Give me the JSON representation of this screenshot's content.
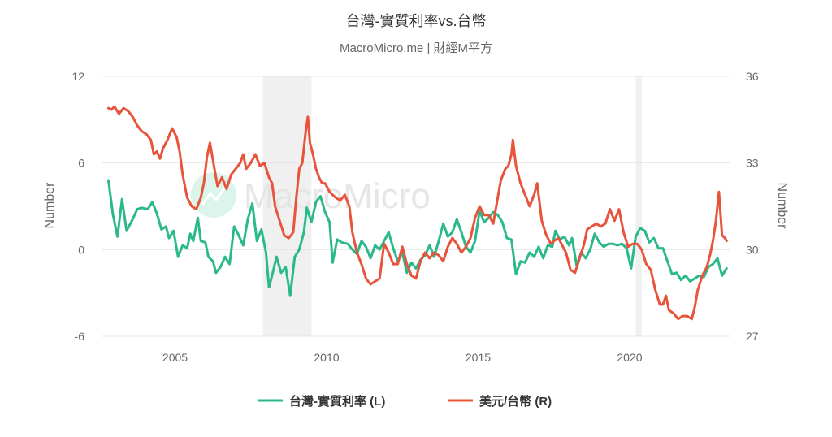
{
  "chart_data": {
    "type": "line",
    "title": "台灣-實質利率vs.台幣",
    "subtitle": "MacroMicro.me | 財經M平方",
    "watermark": "MacroMicro",
    "left_axis": {
      "label": "Number",
      "min": -6,
      "max": 12,
      "ticks": [
        -6,
        0,
        6,
        12
      ]
    },
    "right_axis": {
      "label": "Number",
      "min": 27,
      "max": 36,
      "ticks": [
        27,
        30,
        33,
        36
      ]
    },
    "x_axis": {
      "min": 2002.6,
      "max": 2023.3,
      "ticks": [
        2005,
        2010,
        2015,
        2020
      ]
    },
    "recession_bands": [
      [
        2007.9,
        2009.5
      ],
      [
        2020.2,
        2020.4
      ]
    ],
    "band_color": "#f0f0f0",
    "series": [
      {
        "name": "台灣-實質利率 (L)",
        "axis": "left",
        "color": "#2bb98b",
        "points": [
          [
            2002.8,
            4.8
          ],
          [
            2002.95,
            2.4
          ],
          [
            2003.1,
            0.9
          ],
          [
            2003.25,
            3.5
          ],
          [
            2003.4,
            1.3
          ],
          [
            2003.6,
            2.1
          ],
          [
            2003.75,
            2.8
          ],
          [
            2003.9,
            2.9
          ],
          [
            2004.1,
            2.8
          ],
          [
            2004.25,
            3.3
          ],
          [
            2004.4,
            2.5
          ],
          [
            2004.55,
            1.4
          ],
          [
            2004.7,
            1.6
          ],
          [
            2004.8,
            0.8
          ],
          [
            2004.95,
            1.3
          ],
          [
            2005.1,
            -0.5
          ],
          [
            2005.25,
            0.3
          ],
          [
            2005.4,
            0.1
          ],
          [
            2005.5,
            1.1
          ],
          [
            2005.6,
            0.6
          ],
          [
            2005.75,
            2.2
          ],
          [
            2005.85,
            0.6
          ],
          [
            2006.0,
            0.5
          ],
          [
            2006.1,
            -0.5
          ],
          [
            2006.25,
            -0.8
          ],
          [
            2006.35,
            -1.6
          ],
          [
            2006.5,
            -1.2
          ],
          [
            2006.65,
            -0.5
          ],
          [
            2006.8,
            -1.0
          ],
          [
            2006.95,
            1.6
          ],
          [
            2007.1,
            1.0
          ],
          [
            2007.25,
            0.3
          ],
          [
            2007.4,
            2.1
          ],
          [
            2007.55,
            3.2
          ],
          [
            2007.7,
            0.6
          ],
          [
            2007.85,
            1.4
          ],
          [
            2008.0,
            -0.2
          ],
          [
            2008.1,
            -2.6
          ],
          [
            2008.2,
            -1.8
          ],
          [
            2008.35,
            -0.5
          ],
          [
            2008.5,
            -1.6
          ],
          [
            2008.65,
            -1.2
          ],
          [
            2008.8,
            -3.2
          ],
          [
            2008.95,
            -0.5
          ],
          [
            2009.1,
            0.0
          ],
          [
            2009.25,
            1.2
          ],
          [
            2009.35,
            2.9
          ],
          [
            2009.5,
            1.9
          ],
          [
            2009.65,
            3.3
          ],
          [
            2009.8,
            3.7
          ],
          [
            2009.95,
            2.6
          ],
          [
            2010.1,
            1.9
          ],
          [
            2010.2,
            -0.9
          ],
          [
            2010.35,
            0.7
          ],
          [
            2010.5,
            0.5
          ],
          [
            2010.7,
            0.4
          ],
          [
            2010.85,
            0.0
          ],
          [
            2011.0,
            -0.3
          ],
          [
            2011.15,
            0.6
          ],
          [
            2011.3,
            0.2
          ],
          [
            2011.45,
            -0.6
          ],
          [
            2011.6,
            0.3
          ],
          [
            2011.75,
            0.0
          ],
          [
            2011.9,
            0.6
          ],
          [
            2012.05,
            1.2
          ],
          [
            2012.2,
            0.1
          ],
          [
            2012.35,
            -0.8
          ],
          [
            2012.5,
            -0.2
          ],
          [
            2012.65,
            -1.6
          ],
          [
            2012.8,
            -0.9
          ],
          [
            2012.95,
            -1.3
          ],
          [
            2013.1,
            -0.7
          ],
          [
            2013.25,
            -0.4
          ],
          [
            2013.4,
            0.3
          ],
          [
            2013.55,
            -0.5
          ],
          [
            2013.7,
            0.6
          ],
          [
            2013.85,
            1.8
          ],
          [
            2014.0,
            0.9
          ],
          [
            2014.15,
            1.2
          ],
          [
            2014.3,
            2.1
          ],
          [
            2014.45,
            1.2
          ],
          [
            2014.6,
            0.2
          ],
          [
            2014.75,
            -0.2
          ],
          [
            2014.9,
            0.6
          ],
          [
            2015.05,
            2.7
          ],
          [
            2015.2,
            1.9
          ],
          [
            2015.35,
            2.2
          ],
          [
            2015.5,
            2.6
          ],
          [
            2015.65,
            2.4
          ],
          [
            2015.8,
            1.9
          ],
          [
            2015.95,
            0.8
          ],
          [
            2016.1,
            0.7
          ],
          [
            2016.25,
            -1.7
          ],
          [
            2016.4,
            -0.8
          ],
          [
            2016.55,
            -0.9
          ],
          [
            2016.7,
            -0.2
          ],
          [
            2016.85,
            -0.5
          ],
          [
            2017.0,
            0.2
          ],
          [
            2017.15,
            -0.6
          ],
          [
            2017.3,
            0.3
          ],
          [
            2017.45,
            0.2
          ],
          [
            2017.55,
            1.3
          ],
          [
            2017.7,
            0.7
          ],
          [
            2017.85,
            0.9
          ],
          [
            2018.0,
            0.3
          ],
          [
            2018.1,
            0.8
          ],
          [
            2018.25,
            -1.1
          ],
          [
            2018.4,
            -0.2
          ],
          [
            2018.55,
            -0.6
          ],
          [
            2018.7,
            0.0
          ],
          [
            2018.85,
            1.1
          ],
          [
            2019.0,
            0.5
          ],
          [
            2019.15,
            0.2
          ],
          [
            2019.3,
            0.4
          ],
          [
            2019.45,
            0.4
          ],
          [
            2019.6,
            0.3
          ],
          [
            2019.75,
            0.4
          ],
          [
            2019.9,
            0.1
          ],
          [
            2020.05,
            -1.3
          ],
          [
            2020.2,
            0.9
          ],
          [
            2020.35,
            1.5
          ],
          [
            2020.5,
            1.3
          ],
          [
            2020.65,
            0.5
          ],
          [
            2020.8,
            0.8
          ],
          [
            2020.95,
            0.1
          ],
          [
            2021.1,
            0.1
          ],
          [
            2021.25,
            -0.8
          ],
          [
            2021.4,
            -1.7
          ],
          [
            2021.55,
            -1.6
          ],
          [
            2021.7,
            -2.1
          ],
          [
            2021.85,
            -1.8
          ],
          [
            2022.0,
            -2.2
          ],
          [
            2022.15,
            -2.0
          ],
          [
            2022.3,
            -1.8
          ],
          [
            2022.45,
            -1.9
          ],
          [
            2022.6,
            -1.2
          ],
          [
            2022.75,
            -1.0
          ],
          [
            2022.9,
            -0.6
          ],
          [
            2023.05,
            -1.8
          ],
          [
            2023.2,
            -1.3
          ]
        ]
      },
      {
        "name": "美元/台幣 (R)",
        "axis": "right",
        "color": "#e8543b",
        "points": [
          [
            2002.8,
            34.9
          ],
          [
            2002.9,
            34.85
          ],
          [
            2003.0,
            34.95
          ],
          [
            2003.15,
            34.7
          ],
          [
            2003.3,
            34.9
          ],
          [
            2003.45,
            34.8
          ],
          [
            2003.6,
            34.6
          ],
          [
            2003.75,
            34.3
          ],
          [
            2003.9,
            34.1
          ],
          [
            2004.05,
            34.0
          ],
          [
            2004.2,
            33.8
          ],
          [
            2004.3,
            33.3
          ],
          [
            2004.4,
            33.4
          ],
          [
            2004.5,
            33.15
          ],
          [
            2004.6,
            33.5
          ],
          [
            2004.75,
            33.8
          ],
          [
            2004.9,
            34.2
          ],
          [
            2005.05,
            33.9
          ],
          [
            2005.15,
            33.4
          ],
          [
            2005.25,
            32.6
          ],
          [
            2005.4,
            31.8
          ],
          [
            2005.55,
            31.5
          ],
          [
            2005.7,
            31.4
          ],
          [
            2005.85,
            31.8
          ],
          [
            2005.95,
            32.3
          ],
          [
            2006.05,
            33.2
          ],
          [
            2006.15,
            33.7
          ],
          [
            2006.25,
            33.1
          ],
          [
            2006.4,
            32.2
          ],
          [
            2006.55,
            32.5
          ],
          [
            2006.7,
            32.1
          ],
          [
            2006.85,
            32.6
          ],
          [
            2007.0,
            32.8
          ],
          [
            2007.15,
            33.0
          ],
          [
            2007.25,
            33.3
          ],
          [
            2007.35,
            32.8
          ],
          [
            2007.5,
            33.0
          ],
          [
            2007.65,
            33.3
          ],
          [
            2007.8,
            32.9
          ],
          [
            2007.95,
            33.0
          ],
          [
            2008.1,
            32.5
          ],
          [
            2008.2,
            32.3
          ],
          [
            2008.3,
            31.5
          ],
          [
            2008.45,
            31.0
          ],
          [
            2008.6,
            30.5
          ],
          [
            2008.75,
            30.4
          ],
          [
            2008.9,
            30.6
          ],
          [
            2009.0,
            31.8
          ],
          [
            2009.1,
            32.8
          ],
          [
            2009.2,
            33.0
          ],
          [
            2009.3,
            34.0
          ],
          [
            2009.38,
            34.6
          ],
          [
            2009.45,
            33.7
          ],
          [
            2009.55,
            33.3
          ],
          [
            2009.65,
            32.8
          ],
          [
            2009.75,
            32.5
          ],
          [
            2009.85,
            32.3
          ],
          [
            2009.95,
            32.3
          ],
          [
            2010.1,
            32.0
          ],
          [
            2010.2,
            31.9
          ],
          [
            2010.3,
            31.8
          ],
          [
            2010.45,
            31.7
          ],
          [
            2010.6,
            31.9
          ],
          [
            2010.75,
            31.5
          ],
          [
            2010.85,
            30.6
          ],
          [
            2011.0,
            29.9
          ],
          [
            2011.15,
            29.5
          ],
          [
            2011.3,
            29.0
          ],
          [
            2011.45,
            28.8
          ],
          [
            2011.6,
            28.9
          ],
          [
            2011.75,
            29.0
          ],
          [
            2011.9,
            30.2
          ],
          [
            2012.05,
            29.9
          ],
          [
            2012.2,
            29.5
          ],
          [
            2012.35,
            29.5
          ],
          [
            2012.5,
            30.1
          ],
          [
            2012.65,
            29.5
          ],
          [
            2012.8,
            29.1
          ],
          [
            2012.95,
            29.0
          ],
          [
            2013.1,
            29.6
          ],
          [
            2013.25,
            29.9
          ],
          [
            2013.4,
            29.7
          ],
          [
            2013.55,
            29.9
          ],
          [
            2013.7,
            29.8
          ],
          [
            2013.85,
            29.6
          ],
          [
            2014.0,
            30.1
          ],
          [
            2014.15,
            30.4
          ],
          [
            2014.3,
            30.2
          ],
          [
            2014.45,
            29.9
          ],
          [
            2014.6,
            30.1
          ],
          [
            2014.75,
            30.4
          ],
          [
            2014.9,
            31.1
          ],
          [
            2015.05,
            31.5
          ],
          [
            2015.2,
            31.2
          ],
          [
            2015.35,
            31.2
          ],
          [
            2015.5,
            30.9
          ],
          [
            2015.6,
            31.5
          ],
          [
            2015.75,
            32.4
          ],
          [
            2015.9,
            32.8
          ],
          [
            2016.0,
            32.9
          ],
          [
            2016.1,
            33.3
          ],
          [
            2016.15,
            33.8
          ],
          [
            2016.25,
            32.9
          ],
          [
            2016.4,
            32.3
          ],
          [
            2016.55,
            31.9
          ],
          [
            2016.7,
            31.5
          ],
          [
            2016.85,
            31.9
          ],
          [
            2016.95,
            32.3
          ],
          [
            2017.1,
            31.0
          ],
          [
            2017.25,
            30.5
          ],
          [
            2017.4,
            30.2
          ],
          [
            2017.5,
            30.3
          ],
          [
            2017.65,
            30.4
          ],
          [
            2017.8,
            30.1
          ],
          [
            2017.9,
            29.9
          ],
          [
            2018.05,
            29.3
          ],
          [
            2018.2,
            29.2
          ],
          [
            2018.35,
            29.7
          ],
          [
            2018.5,
            30.2
          ],
          [
            2018.6,
            30.7
          ],
          [
            2018.75,
            30.8
          ],
          [
            2018.9,
            30.9
          ],
          [
            2019.05,
            30.8
          ],
          [
            2019.2,
            30.9
          ],
          [
            2019.35,
            31.4
          ],
          [
            2019.5,
            31.0
          ],
          [
            2019.65,
            31.4
          ],
          [
            2019.8,
            30.6
          ],
          [
            2019.95,
            30.1
          ],
          [
            2020.1,
            30.2
          ],
          [
            2020.25,
            30.2
          ],
          [
            2020.4,
            30.0
          ],
          [
            2020.55,
            29.5
          ],
          [
            2020.7,
            29.3
          ],
          [
            2020.85,
            28.6
          ],
          [
            2021.0,
            28.1
          ],
          [
            2021.1,
            28.1
          ],
          [
            2021.2,
            28.4
          ],
          [
            2021.3,
            27.9
          ],
          [
            2021.45,
            27.8
          ],
          [
            2021.6,
            27.6
          ],
          [
            2021.75,
            27.7
          ],
          [
            2021.9,
            27.7
          ],
          [
            2022.05,
            27.6
          ],
          [
            2022.15,
            28.0
          ],
          [
            2022.25,
            28.6
          ],
          [
            2022.4,
            29.1
          ],
          [
            2022.55,
            29.4
          ],
          [
            2022.65,
            29.8
          ],
          [
            2022.75,
            30.3
          ],
          [
            2022.85,
            31.0
          ],
          [
            2022.95,
            32.0
          ],
          [
            2023.05,
            30.5
          ],
          [
            2023.15,
            30.4
          ],
          [
            2023.2,
            30.3
          ]
        ]
      }
    ],
    "legend": {
      "position": "bottom"
    },
    "grid": "horizontal"
  }
}
